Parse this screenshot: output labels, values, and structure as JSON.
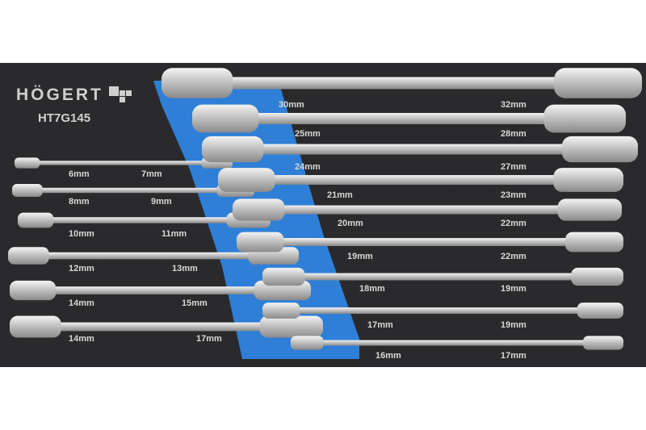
{
  "brand": {
    "name": "HÖGERT",
    "model": "HT7G145"
  },
  "colors": {
    "tray": "#2a2a2c",
    "accent_blue": "#2f7fd6",
    "chrome": "#d9d9d9"
  },
  "wrenches_left": [
    {
      "small": "6mm",
      "large": "7mm"
    },
    {
      "small": "8mm",
      "large": "9mm"
    },
    {
      "small": "10mm",
      "large": "11mm"
    },
    {
      "small": "12mm",
      "large": "13mm"
    },
    {
      "small": "14mm",
      "large": "15mm"
    },
    {
      "small": "14mm",
      "large": "17mm"
    }
  ],
  "wrenches_right": [
    {
      "small": "30mm",
      "large": "32mm"
    },
    {
      "small": "25mm",
      "large": "28mm"
    },
    {
      "small": "24mm",
      "large": "27mm"
    },
    {
      "small": "21mm",
      "large": "23mm"
    },
    {
      "small": "20mm",
      "large": "22mm"
    },
    {
      "small": "19mm",
      "large": "22mm"
    },
    {
      "small": "18mm",
      "large": "19mm"
    },
    {
      "small": "17mm",
      "large": "19mm"
    },
    {
      "small": "16mm",
      "large": "17mm"
    }
  ]
}
